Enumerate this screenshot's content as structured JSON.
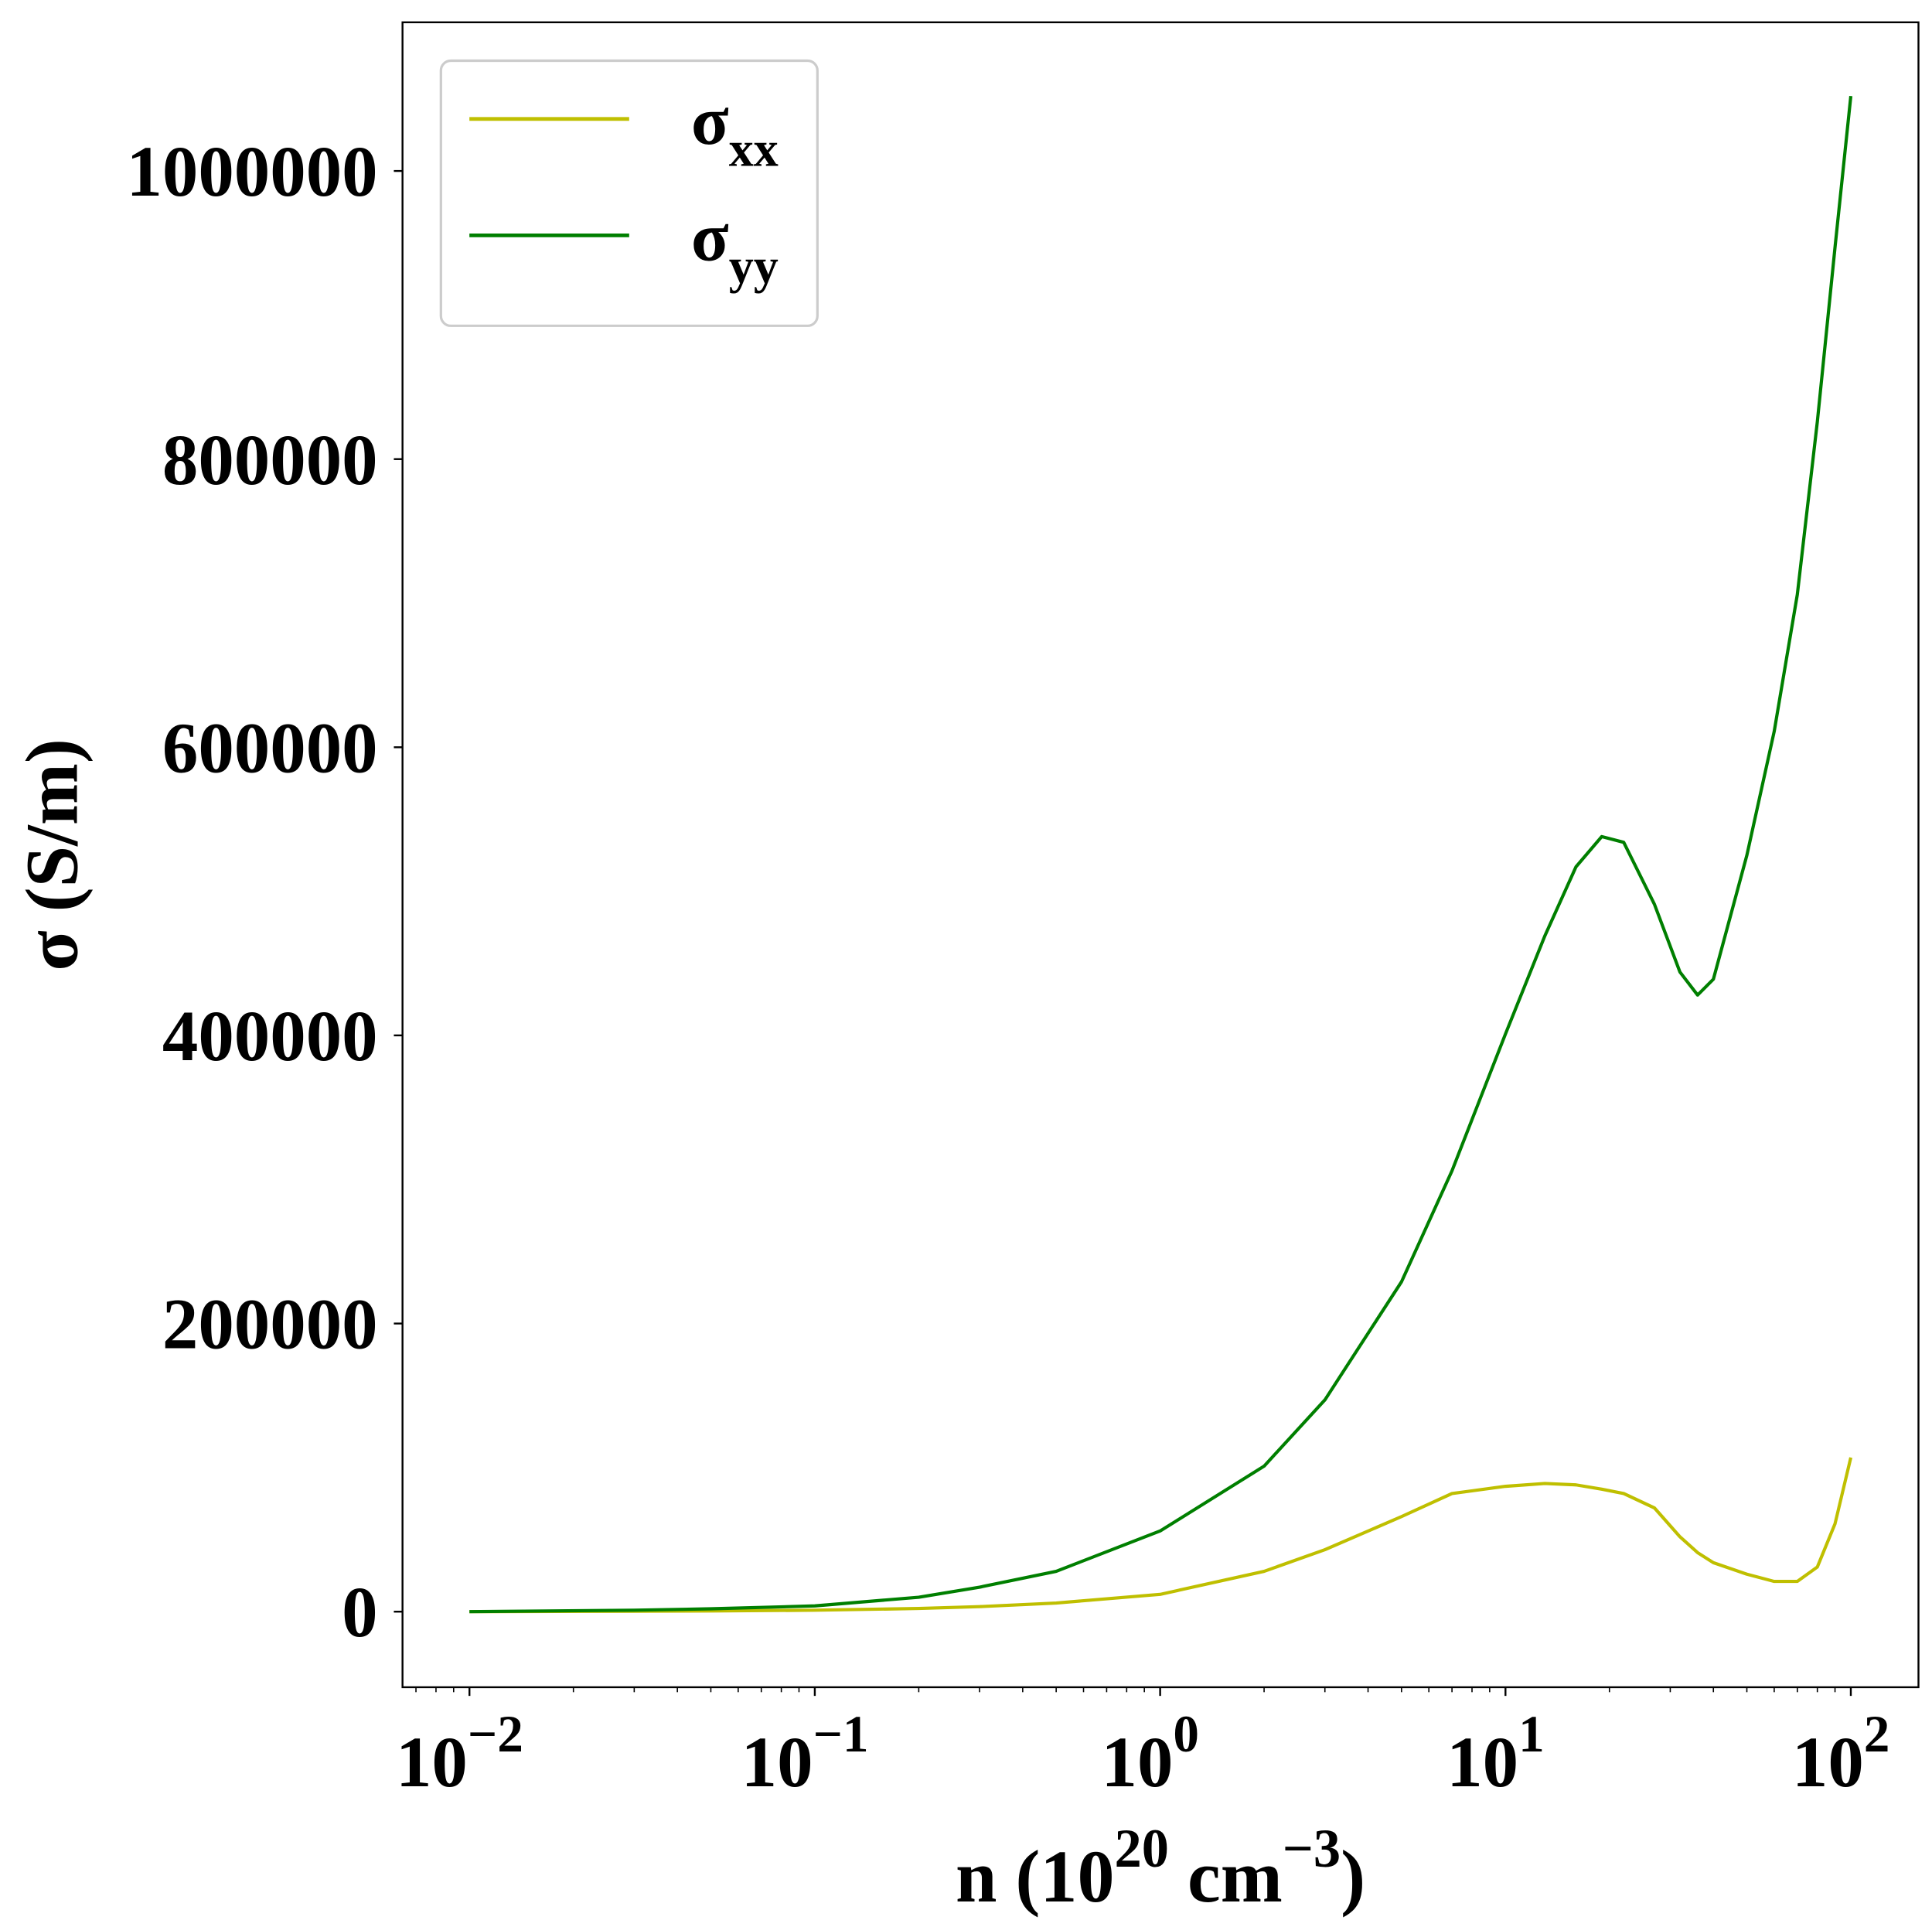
{
  "chart_data": {
    "type": "line",
    "x_label": [
      {
        "text": "n (10"
      },
      {
        "sup": "20"
      },
      {
        "text": " cm"
      },
      {
        "sup": "−3"
      },
      {
        "text": ")"
      }
    ],
    "y_label": "σ (S/m)",
    "log_x": true,
    "xlim": [
      0.0064,
      157
    ],
    "ylim": [
      -52450,
      1103200
    ],
    "xticks": [
      {
        "value": 0.01,
        "label": "10",
        "exponent": "−2"
      },
      {
        "value": 0.1,
        "label": "10",
        "exponent": "−1"
      },
      {
        "value": 1,
        "label": "10",
        "exponent": "0"
      },
      {
        "value": 10,
        "label": "10",
        "exponent": "1"
      },
      {
        "value": 100,
        "label": "10",
        "exponent": "2"
      }
    ],
    "x_minor_ticks": [
      0.007,
      0.008,
      0.009,
      0.02,
      0.03,
      0.04,
      0.05,
      0.06,
      0.07,
      0.08,
      0.09,
      0.2,
      0.3,
      0.4,
      0.5,
      0.6,
      0.7,
      0.8,
      0.9,
      2,
      3,
      4,
      5,
      6,
      7,
      8,
      9,
      20,
      30,
      40,
      50,
      60,
      70,
      80,
      90
    ],
    "yticks": [
      0,
      200000,
      400000,
      600000,
      800000,
      1000000
    ],
    "legend": "upper left",
    "x": [
      0.01,
      0.03,
      0.05,
      0.1,
      0.2,
      0.3,
      0.5,
      1,
      2,
      3,
      5,
      7,
      10,
      13,
      16,
      19,
      22,
      27,
      32,
      36,
      40,
      50,
      60,
      70,
      80,
      90,
      100
    ],
    "series": [
      {
        "name": "σ",
        "name_sub": "xx",
        "color": "#bfbf00",
        "values": [
          0,
          300,
          500,
          1000,
          2200,
          3500,
          6000,
          12000,
          28000,
          43000,
          66000,
          82000,
          87000,
          89000,
          88000,
          85000,
          82000,
          72000,
          52000,
          41000,
          34000,
          26000,
          21000,
          21000,
          31000,
          61000,
          107000
        ]
      },
      {
        "name": "σ",
        "name_sub": "yy",
        "color": "#007f00",
        "values": [
          0,
          1000,
          2000,
          4000,
          10000,
          17000,
          28000,
          56000,
          101000,
          147000,
          229000,
          306000,
          401000,
          469000,
          517000,
          538000,
          534000,
          491000,
          444000,
          428000,
          439000,
          525000,
          611000,
          706000,
          826000,
          947000,
          1052000
        ]
      }
    ]
  }
}
